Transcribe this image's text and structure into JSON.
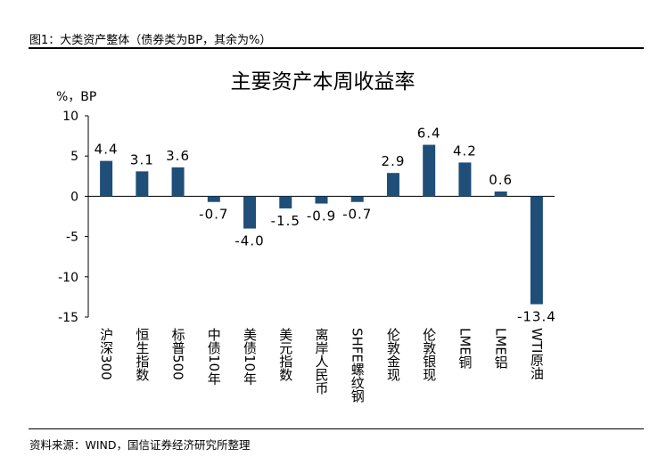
{
  "figure_title": "图1：大类资产整体（债券类为BP，其余为%）",
  "source": "资料来源：WIND，国信证券经济研究所整理",
  "chart_data": {
    "type": "bar",
    "title": "主要资产本周收益率",
    "ylabel": "%，BP",
    "xlabel": "",
    "ylim": [
      -15,
      10
    ],
    "yticks": [
      -15,
      -10,
      -5,
      0,
      5,
      10
    ],
    "grid": false,
    "bar_color": "#1F4E79",
    "categories": [
      "沪深300",
      "恒生指数",
      "标普500",
      "中债10年",
      "美债10年",
      "美元指数",
      "离岸人民币",
      "SHFE螺纹钢",
      "伦敦金现",
      "伦敦银现",
      "LME铜",
      "LME铝",
      "WTI原油"
    ],
    "values": [
      4.4,
      3.1,
      3.6,
      -0.7,
      -4.0,
      -1.5,
      -0.9,
      -0.7,
      2.9,
      6.4,
      4.2,
      0.6,
      -13.4
    ],
    "data_labels": [
      "4.4",
      "3.1",
      "3.6",
      "-0.7",
      "-4.0",
      "-1.5",
      "-0.9",
      "-0.7",
      "2.9",
      "6.4",
      "4.2",
      "0.6",
      "-13.4"
    ]
  }
}
